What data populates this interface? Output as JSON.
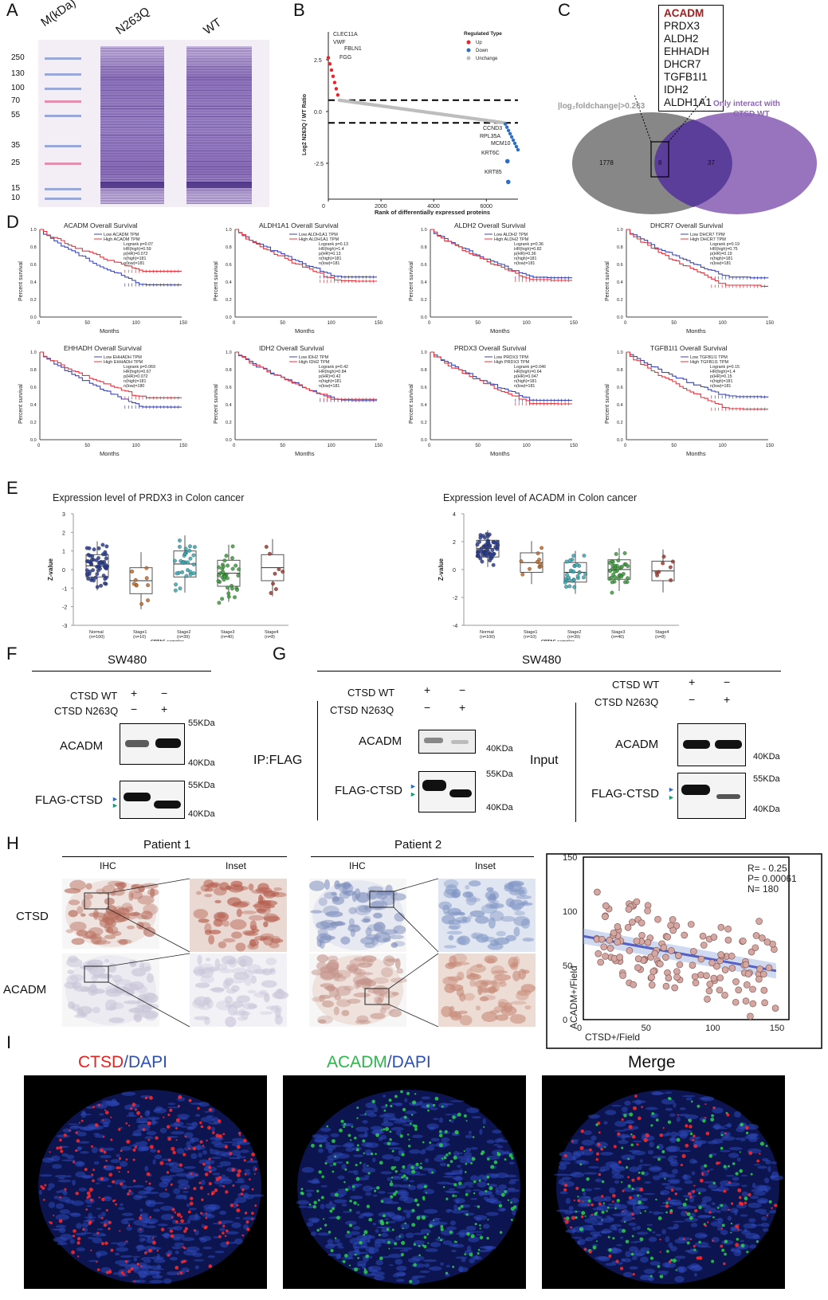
{
  "panels": {
    "A": "A",
    "B": "B",
    "C": "C",
    "D": "D",
    "E": "E",
    "F": "F",
    "G": "G",
    "H": "H",
    "I": "I"
  },
  "gel": {
    "col_labels": [
      "M(kDa)",
      "N263Q",
      "WT"
    ],
    "ladder": [
      "250",
      "130",
      "100",
      "70",
      "55",
      "35",
      "25",
      "15",
      "10"
    ]
  },
  "volcano": {
    "ylabel": "Log2  N263Q / WT Ratio",
    "xlabel": "Rank of differentially expressed proteins",
    "legend_title": "Regulated Type",
    "legend": [
      "Up",
      "Down",
      "Unchange"
    ],
    "colors": {
      "up": "#e8262a",
      "down": "#2e6fc4",
      "unchange": "#bdbdbd"
    },
    "up_labels": [
      "CLEC11A",
      "VWF",
      "FBLN1",
      "FGG"
    ],
    "down_labels": [
      "CCND3",
      "RPL35A",
      "MCM10",
      "KRT6C",
      "KRT85"
    ],
    "yticks": [
      "2.5",
      "0.0",
      "-2.5"
    ],
    "xticks": [
      "0",
      "2000",
      "4000",
      "6000"
    ]
  },
  "venn": {
    "genes": [
      "ACADM",
      "PRDX3",
      "ALDH2",
      "EHHADH",
      "DHCR7",
      "TGFB1I1",
      "IDH2",
      "ALDH1A1"
    ],
    "left_label": "|log₂foldchange|>0.263",
    "right_label_1": "Only interact with",
    "right_label_2": "CTSD WT",
    "left_n": "1778",
    "mid_n": "8",
    "right_n": "37"
  },
  "survival": {
    "xlabel": "Months",
    "ylabel": "Percent survival",
    "xticks": [
      "0",
      "50",
      "100",
      "150"
    ],
    "yticks": [
      "0.0",
      "0.2",
      "0.4",
      "0.6",
      "0.8",
      "1.0"
    ],
    "plots": [
      {
        "title": "ACADM Overall Survival",
        "legend": [
          "Low ACADM TPM",
          "High ACADM TPM"
        ],
        "stats": [
          "Logrank p=0.07",
          "HR(high)=0.59",
          "p(HR)=0.072",
          "n(high)=181",
          "n(low)=181"
        ]
      },
      {
        "title": "ALDH1A1 Overall Survival",
        "legend": [
          "Low ALDH1A1 TPM",
          "High ALDH1A1 TPM"
        ],
        "stats": [
          "Logrank p=0.13",
          "HR(high)=1.4",
          "p(HR)=0.13",
          "n(high)=181",
          "n(low)=181"
        ]
      },
      {
        "title": "ALDH2 Overall Survival",
        "legend": [
          "Low ALDH2 TPM",
          "High ALDH2 TPM"
        ],
        "stats": [
          "Logrank p=0.36",
          "HR(high)=0.82",
          "p(HR)=0.36",
          "n(high)=181",
          "n(low)=181"
        ]
      },
      {
        "title": "DHCR7 Overall Survival",
        "legend": [
          "Low DHCR7 TPM",
          "High DHCR7 TPM"
        ],
        "stats": [
          "Logrank p=0.19",
          "HR(high)=0.75",
          "p(HR)=0.19",
          "n(high)=181",
          "n(low)=181"
        ]
      },
      {
        "title": "EHHADH Overall Survival",
        "legend": [
          "Low EHHADH TPM",
          "High EHHADH TPM"
        ],
        "stats": [
          "Logrank p=0.069",
          "HR(high)=0.67",
          "p(HR)=0.072",
          "n(high)=181",
          "n(low)=180"
        ]
      },
      {
        "title": "IDH2 Overall Survival",
        "legend": [
          "Low IDH2 TPM",
          "High IDH2 TPM"
        ],
        "stats": [
          "Logrank p=0.42",
          "HR(high)=0.84",
          "p(HR)=0.42",
          "n(high)=181",
          "n(low)=181"
        ]
      },
      {
        "title": "PRDX3 Overall Survival",
        "legend": [
          "Low PRDX3 TPM",
          "High PRDX3 TPM"
        ],
        "stats": [
          "Logrank p=0.046",
          "HR(high)=0.64",
          "p(HR)=0.047",
          "n(high)=181",
          "n(low)=181"
        ]
      },
      {
        "title": "TGFB1I1 Overall Survival",
        "legend": [
          "Low TGFB1I1 TPM",
          "High TGFB1I1 TPM"
        ],
        "stats": [
          "Logrank p=0.15",
          "HR(high)=1.4",
          "p(HR)=0.15",
          "n(high)=181",
          "n(low)=181"
        ]
      }
    ]
  },
  "expression": {
    "plots": [
      {
        "title": "Expression level of PRDX3 in Colon cancer",
        "ylabel": "Z-value",
        "xlabel": "CPTAC samples",
        "yticks": [
          "3",
          "2",
          "1",
          "0",
          "-1",
          "-2",
          "-3"
        ],
        "groups": [
          "Normal",
          "Stage1",
          "Stage2",
          "Stage3",
          "Stage4"
        ],
        "ns": [
          "(n=100)",
          "(n=10)",
          "(n=39)",
          "(n=40)",
          "(n=8)"
        ]
      },
      {
        "title": "Expression level of ACADM in Colon cancer",
        "ylabel": "Z-value",
        "xlabel": "CPTAC samples",
        "yticks": [
          "4",
          "2",
          "0",
          "-2",
          "-4"
        ],
        "groups": [
          "Normal",
          "Stage1",
          "Stage2",
          "Stage3",
          "Stage4"
        ],
        "ns": [
          "(n=100)",
          "(n=10)",
          "(n=39)",
          "(n=40)",
          "(n=8)"
        ]
      }
    ]
  },
  "blotF": {
    "cell": "SW480",
    "rows": [
      "CTSD WT",
      "CTSD N263Q"
    ],
    "signs_wt": [
      "+",
      "−"
    ],
    "signs_mut": [
      "−",
      "+"
    ],
    "bands": [
      "ACADM",
      "FLAG-CTSD"
    ],
    "markers": [
      "55KDa",
      "40KDa",
      "55KDa",
      "40KDa"
    ]
  },
  "blotG": {
    "cell": "SW480",
    "ip": "IP:FLAG",
    "input": "Input",
    "rows": [
      "CTSD WT",
      "CTSD N263Q"
    ],
    "signs_wt": [
      "+",
      "−"
    ],
    "signs_mut": [
      "−",
      "+"
    ],
    "bands": [
      "ACADM",
      "FLAG-CTSD"
    ],
    "markers": [
      "40KDa",
      "55KDa",
      "40KDa",
      "40KDa",
      "55KDa",
      "40KDa"
    ]
  },
  "ihc": {
    "patients": [
      "Patient 1",
      "Patient 2"
    ],
    "cols": [
      "IHC",
      "Inset"
    ],
    "rows": [
      "CTSD",
      "ACADM"
    ]
  },
  "scatter": {
    "stats": [
      "R= - 0.25",
      "P= 0.00061",
      "N= 180"
    ],
    "xlabel": "CTSD+/Field",
    "ylabel": "ACADM+/Field",
    "xticks": [
      "0",
      "50",
      "100",
      "150"
    ],
    "yticks": [
      "0",
      "50",
      "100",
      "150"
    ]
  },
  "ifig": {
    "t1a": "CTSD",
    "t1b": "/DAPI",
    "t2a": "ACADM",
    "t2b": "/DAPI",
    "t3": "Merge"
  }
}
